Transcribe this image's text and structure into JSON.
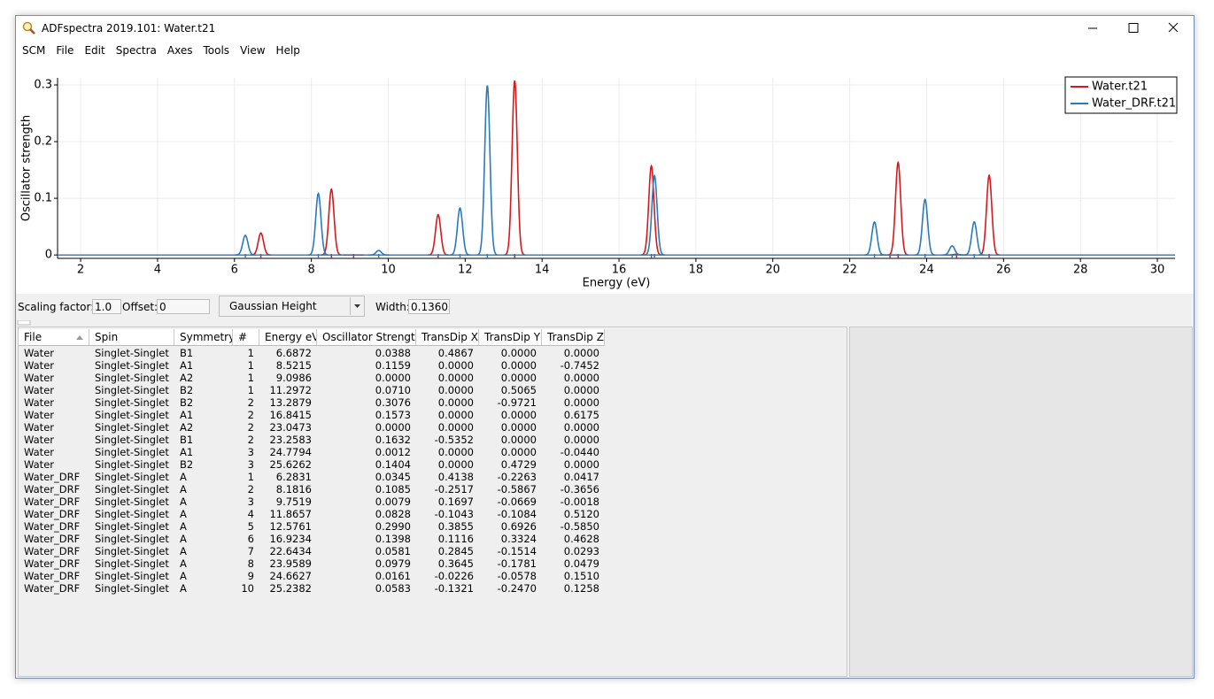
{
  "window": {
    "title": "ADFspectra 2019.101: Water.t21"
  },
  "menu": [
    "SCM",
    "File",
    "Edit",
    "Spectra",
    "Axes",
    "Tools",
    "View",
    "Help"
  ],
  "chart_data": {
    "type": "line",
    "x_label": "Energy (eV)",
    "y_label": "Oscillator strength",
    "xlim": [
      1.4,
      30.46
    ],
    "ylim": [
      -0.006,
      0.3125
    ],
    "xticks": [
      2,
      4,
      6,
      8,
      10,
      12,
      14,
      16,
      18,
      20,
      22,
      24,
      26,
      28,
      30
    ],
    "yticks": [
      0,
      0.1,
      0.2,
      0.3
    ],
    "grid": true,
    "legend": "top-right",
    "series": [
      {
        "name": "Water.t21",
        "color": "#d7191c",
        "x": [
          6.6872,
          8.5215,
          9.0986,
          11.2972,
          13.2879,
          16.8415,
          23.0473,
          23.2583,
          24.7794,
          25.6262
        ],
        "values": [
          0.0388,
          0.1159,
          0.0,
          0.071,
          0.3076,
          0.1573,
          0.0,
          0.1632,
          0.0012,
          0.1404
        ]
      },
      {
        "name": "Water_DRF.t21",
        "color": "#2b7bba",
        "x": [
          6.2831,
          8.1816,
          9.7519,
          11.8657,
          12.5761,
          16.9234,
          22.6434,
          23.9589,
          24.6627,
          25.2382
        ],
        "values": [
          0.0345,
          0.1085,
          0.0079,
          0.0828,
          0.299,
          0.1398,
          0.0581,
          0.0979,
          0.0161,
          0.0583
        ]
      }
    ]
  },
  "controls": {
    "scaling_label": "Scaling factor:",
    "scaling": "1.0",
    "offset_label": "Offset:",
    "offset": "0",
    "mode": "Gaussian Height",
    "width_label": "Width:",
    "width": "0.13605"
  },
  "table": {
    "headers": [
      "File",
      "Spin",
      "Symmetry",
      "#",
      "Energy eV",
      "Oscillator Strength",
      "TransDip X",
      "TransDip Y",
      "TransDip Z"
    ],
    "rows": [
      [
        "Water",
        "Singlet-Singlet",
        "B1",
        "1",
        "6.6872",
        "0.0388",
        "0.4867",
        "0.0000",
        "0.0000"
      ],
      [
        "Water",
        "Singlet-Singlet",
        "A1",
        "1",
        "8.5215",
        "0.1159",
        "0.0000",
        "0.0000",
        "-0.7452"
      ],
      [
        "Water",
        "Singlet-Singlet",
        "A2",
        "1",
        "9.0986",
        "0.0000",
        "0.0000",
        "0.0000",
        "0.0000"
      ],
      [
        "Water",
        "Singlet-Singlet",
        "B2",
        "1",
        "11.2972",
        "0.0710",
        "0.0000",
        "0.5065",
        "0.0000"
      ],
      [
        "Water",
        "Singlet-Singlet",
        "B2",
        "2",
        "13.2879",
        "0.3076",
        "0.0000",
        "-0.9721",
        "0.0000"
      ],
      [
        "Water",
        "Singlet-Singlet",
        "A1",
        "2",
        "16.8415",
        "0.1573",
        "0.0000",
        "0.0000",
        "0.6175"
      ],
      [
        "Water",
        "Singlet-Singlet",
        "A2",
        "2",
        "23.0473",
        "0.0000",
        "0.0000",
        "0.0000",
        "0.0000"
      ],
      [
        "Water",
        "Singlet-Singlet",
        "B1",
        "2",
        "23.2583",
        "0.1632",
        "-0.5352",
        "0.0000",
        "0.0000"
      ],
      [
        "Water",
        "Singlet-Singlet",
        "A1",
        "3",
        "24.7794",
        "0.0012",
        "0.0000",
        "0.0000",
        "-0.0440"
      ],
      [
        "Water",
        "Singlet-Singlet",
        "B2",
        "3",
        "25.6262",
        "0.1404",
        "0.0000",
        "0.4729",
        "0.0000"
      ],
      [
        "Water_DRF",
        "Singlet-Singlet",
        "A",
        "1",
        "6.2831",
        "0.0345",
        "0.4138",
        "-0.2263",
        "0.0417"
      ],
      [
        "Water_DRF",
        "Singlet-Singlet",
        "A",
        "2",
        "8.1816",
        "0.1085",
        "-0.2517",
        "-0.5867",
        "-0.3656"
      ],
      [
        "Water_DRF",
        "Singlet-Singlet",
        "A",
        "3",
        "9.7519",
        "0.0079",
        "0.1697",
        "-0.0669",
        "-0.0018"
      ],
      [
        "Water_DRF",
        "Singlet-Singlet",
        "A",
        "4",
        "11.8657",
        "0.0828",
        "-0.1043",
        "-0.1084",
        "0.5120"
      ],
      [
        "Water_DRF",
        "Singlet-Singlet",
        "A",
        "5",
        "12.5761",
        "0.2990",
        "0.3855",
        "0.6926",
        "-0.5850"
      ],
      [
        "Water_DRF",
        "Singlet-Singlet",
        "A",
        "6",
        "16.9234",
        "0.1398",
        "0.1116",
        "0.3324",
        "0.4628"
      ],
      [
        "Water_DRF",
        "Singlet-Singlet",
        "A",
        "7",
        "22.6434",
        "0.0581",
        "0.2845",
        "-0.1514",
        "0.0293"
      ],
      [
        "Water_DRF",
        "Singlet-Singlet",
        "A",
        "8",
        "23.9589",
        "0.0979",
        "0.3645",
        "-0.1781",
        "0.0479"
      ],
      [
        "Water_DRF",
        "Singlet-Singlet",
        "A",
        "9",
        "24.6627",
        "0.0161",
        "-0.0226",
        "-0.0578",
        "0.1510"
      ],
      [
        "Water_DRF",
        "Singlet-Singlet",
        "A",
        "10",
        "25.2382",
        "0.0583",
        "-0.1321",
        "-0.2470",
        "0.1258"
      ]
    ]
  }
}
